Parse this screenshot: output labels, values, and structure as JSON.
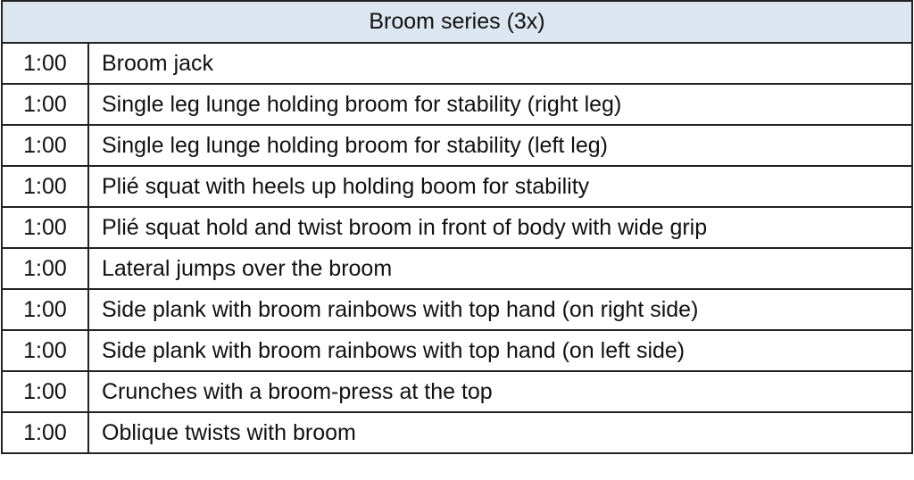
{
  "header": {
    "title": "Broom series (3x)"
  },
  "table": {
    "rows": [
      [
        "1:00",
        "Broom jack"
      ],
      [
        "1:00",
        "Single leg lunge holding broom for stability (right leg)"
      ],
      [
        "1:00",
        "Single leg lunge holding broom for stability (left leg)"
      ],
      [
        "1:00",
        "Plié squat with heels up holding boom for stability"
      ],
      [
        "1:00",
        "Plié squat hold and twist broom in front of body with wide grip"
      ],
      [
        "1:00",
        "Lateral jumps over the broom"
      ],
      [
        "1:00",
        "Side plank with broom rainbows with top hand (on right side)"
      ],
      [
        "1:00",
        "Side plank with broom rainbows with top hand (on left side)"
      ],
      [
        "1:00",
        "Crunches with a broom-press at the top"
      ],
      [
        "1:00",
        "Oblique twists with broom"
      ]
    ]
  }
}
